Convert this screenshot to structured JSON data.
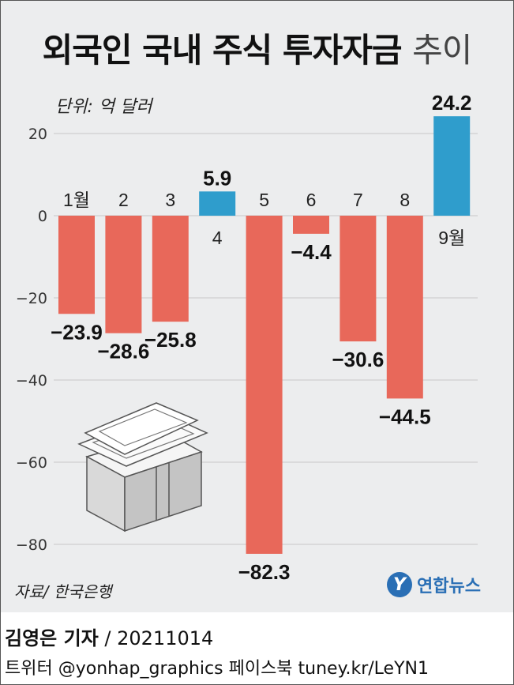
{
  "title_main": "외국인 국내 주식 투자자금",
  "title_light": "추이",
  "unit_label": "단위: 억 달러",
  "source_label": "자료/ 한국은행",
  "logo": {
    "mark": "Y",
    "name": "연합뉴스"
  },
  "byline": {
    "author": "김영은 기자",
    "date": "/ 20211014"
  },
  "footer_social": "트위터 @yonhap_graphics  페이스북 tuney.kr/LeYN1",
  "colors": {
    "negative": "#e8685a",
    "positive": "#2f9dcc",
    "grid": "#c8c8c8",
    "background": "#ecedee"
  },
  "icon": "stack-of-banknotes-icon",
  "chart_data": {
    "type": "bar",
    "categories": [
      "1월",
      "2",
      "3",
      "4",
      "5",
      "6",
      "7",
      "8",
      "9월"
    ],
    "values": [
      -23.9,
      -28.6,
      -25.8,
      5.9,
      -82.3,
      -4.4,
      -30.6,
      -44.5,
      24.2
    ],
    "value_labels": [
      "−23.9",
      "−28.6",
      "−25.8",
      "5.9",
      "−82.3",
      "−4.4",
      "−30.6",
      "−44.5",
      "24.2"
    ],
    "y_ticks": [
      20,
      0,
      -20,
      -40,
      -60,
      -80
    ],
    "y_tick_labels": [
      "20",
      "0",
      "−20",
      "−40",
      "−60",
      "−80"
    ],
    "ylim": [
      -85,
      28
    ],
    "grid": true,
    "ylabel": "단위: 억 달러",
    "title": "외국인 국내 주식 투자자금 추이"
  }
}
